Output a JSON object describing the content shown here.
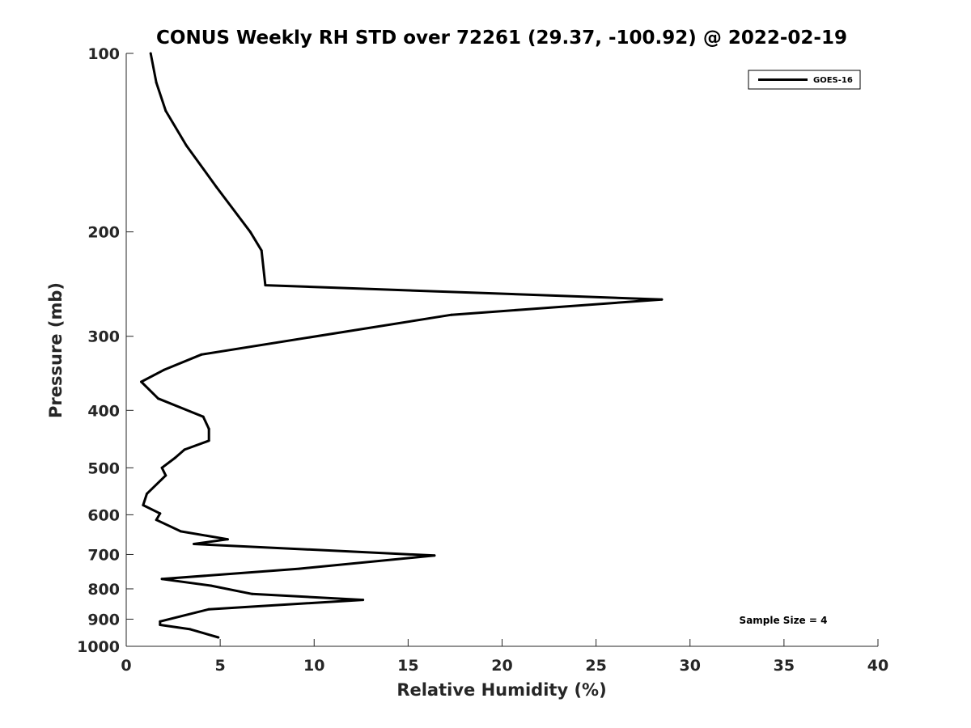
{
  "chart_data": {
    "type": "line",
    "title": "CONUS Weekly RH STD over 72261 (29.37, -100.92) @ 2022-02-19",
    "xlabel": "Relative Humidity (%)",
    "ylabel": "Pressure (mb)",
    "xlim": [
      0,
      40
    ],
    "ylim": [
      100,
      1000
    ],
    "y_scale": "log",
    "y_reversed": true,
    "x_ticks": [
      "0",
      "5",
      "10",
      "15",
      "20",
      "25",
      "30",
      "35",
      "40"
    ],
    "y_ticks": [
      "100",
      "200",
      "300",
      "400",
      "500",
      "600",
      "700",
      "800",
      "900",
      "1000"
    ],
    "grid": false,
    "legend_position": "top-right",
    "series": [
      {
        "name": "GOES-16",
        "color": "#000000",
        "x": [
          1.3,
          1.6,
          2.1,
          3.2,
          4.8,
          6.6,
          7.2,
          7.4,
          28.5,
          17.3,
          4.0,
          2.0,
          0.8,
          1.7,
          4.1,
          4.4,
          4.4,
          3.1,
          2.6,
          1.9,
          2.1,
          1.1,
          0.9,
          1.8,
          1.6,
          2.9,
          5.4,
          3.6,
          16.4,
          9.2,
          1.9,
          4.5,
          6.7,
          12.6,
          4.4,
          1.8,
          1.8,
          3.4,
          4.9
        ],
        "y": [
          100,
          112,
          125,
          143,
          168,
          200,
          215,
          246,
          260,
          276,
          322,
          342,
          358,
          382,
          410,
          430,
          450,
          466,
          481,
          500,
          515,
          553,
          578,
          597,
          612,
          640,
          660,
          672,
          703,
          740,
          770,
          790,
          816,
          835,
          866,
          908,
          920,
          936,
          966
        ]
      }
    ],
    "annotations": [
      "Sample Size = 4"
    ]
  }
}
